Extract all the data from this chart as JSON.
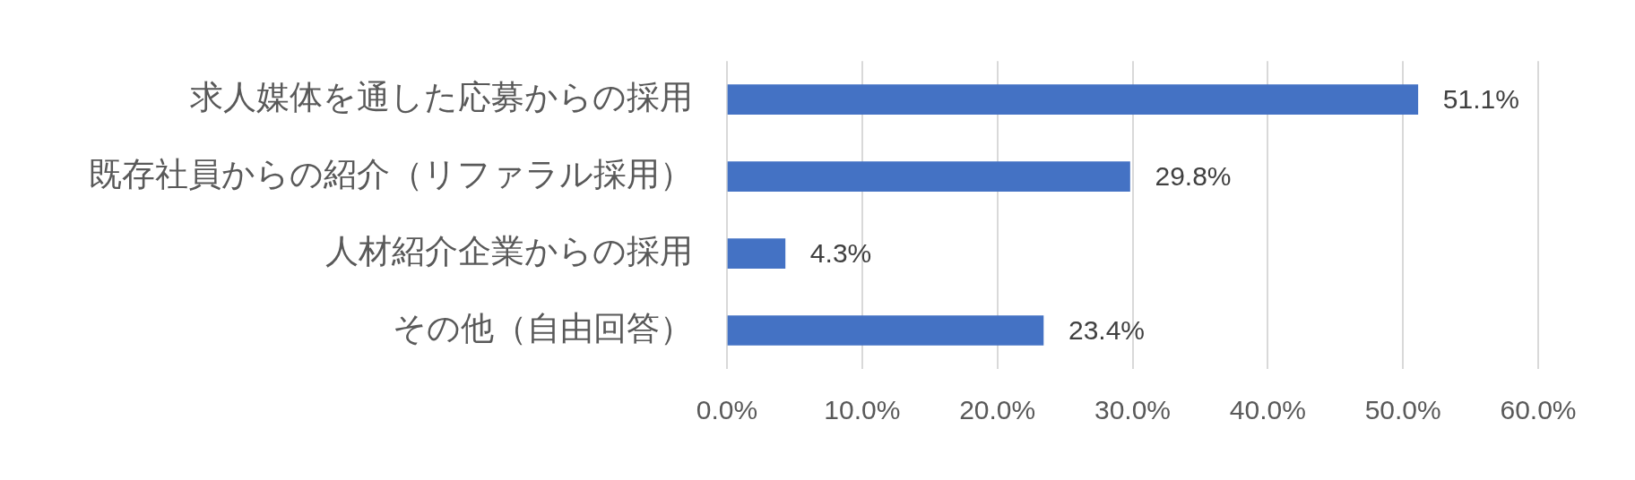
{
  "chart_data": {
    "type": "bar",
    "orientation": "horizontal",
    "categories": [
      "求人媒体を通した応募からの採用",
      "既存社員からの紹介（リファラル採用）",
      "人材紹介企業からの採用",
      "その他（自由回答）"
    ],
    "values": [
      51.1,
      29.8,
      4.3,
      23.4
    ],
    "value_labels": [
      "51.1%",
      "29.8%",
      "4.3%",
      "23.4%"
    ],
    "color": "#4472c4",
    "xlim": [
      0,
      60
    ],
    "xticks": [
      {
        "value": 0,
        "label": "0.0%"
      },
      {
        "value": 10,
        "label": "10.0%"
      },
      {
        "value": 20,
        "label": "20.0%"
      },
      {
        "value": 30,
        "label": "30.0%"
      },
      {
        "value": 40,
        "label": "40.0%"
      },
      {
        "value": 50,
        "label": "50.0%"
      },
      {
        "value": 60,
        "label": "60.0%"
      }
    ],
    "grid": "x"
  }
}
